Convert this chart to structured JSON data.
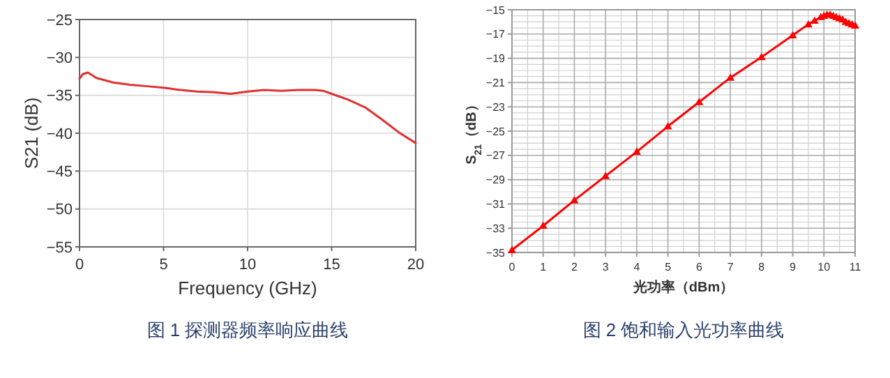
{
  "chart_data": [
    {
      "type": "line",
      "title": "图 1 探测器频率响应曲线",
      "xlabel": "Frequency (GHz)",
      "ylabel": "S21 (dB)",
      "xlim": [
        0,
        20
      ],
      "ylim": [
        -55,
        -25
      ],
      "xticks": [
        0,
        5,
        10,
        15,
        20
      ],
      "yticks": [
        -55,
        -50,
        -45,
        -40,
        -35,
        -30,
        -25
      ],
      "grid": true,
      "series": [
        {
          "color": "#e03030",
          "x": [
            0,
            0.2,
            0.5,
            1,
            2,
            3,
            4,
            5,
            6,
            7,
            8,
            9,
            10,
            11,
            12,
            13,
            14,
            14.5,
            15,
            16,
            17,
            18,
            19,
            20
          ],
          "values": [
            -32.8,
            -32.2,
            -32.0,
            -32.7,
            -33.3,
            -33.6,
            -33.8,
            -34.0,
            -34.3,
            -34.5,
            -34.6,
            -34.8,
            -34.5,
            -34.3,
            -34.4,
            -34.3,
            -34.3,
            -34.4,
            -34.8,
            -35.6,
            -36.6,
            -38.2,
            -39.9,
            -41.3
          ]
        }
      ]
    },
    {
      "type": "line",
      "title": "图 2 饱和输入光功率曲线",
      "xlabel": "光功率（dBm）",
      "ylabel": "S$_{21}$（dB）",
      "xlim": [
        0,
        11
      ],
      "ylim": [
        -35,
        -15
      ],
      "xticks": [
        0,
        1,
        2,
        3,
        4,
        5,
        6,
        7,
        8,
        9,
        10,
        11
      ],
      "yticks": [
        -35,
        -33,
        -31,
        -29,
        -27,
        -25,
        -23,
        -21,
        -19,
        -17,
        -15
      ],
      "grid": true,
      "marker": "triangle",
      "series": [
        {
          "color": "#ff0000",
          "x": [
            0,
            1,
            2,
            3,
            4,
            5,
            6,
            7,
            8,
            9,
            9.5,
            9.7,
            9.9,
            10,
            10.1,
            10.2,
            10.3,
            10.4,
            10.5,
            10.6,
            10.7,
            10.8,
            10.9,
            11
          ],
          "values": [
            -34.8,
            -32.8,
            -30.7,
            -28.7,
            -26.7,
            -24.6,
            -22.6,
            -20.6,
            -18.9,
            -17.1,
            -16.2,
            -15.9,
            -15.6,
            -15.5,
            -15.4,
            -15.4,
            -15.5,
            -15.6,
            -15.7,
            -15.8,
            -16.0,
            -16.1,
            -16.2,
            -16.3
          ]
        }
      ]
    }
  ]
}
